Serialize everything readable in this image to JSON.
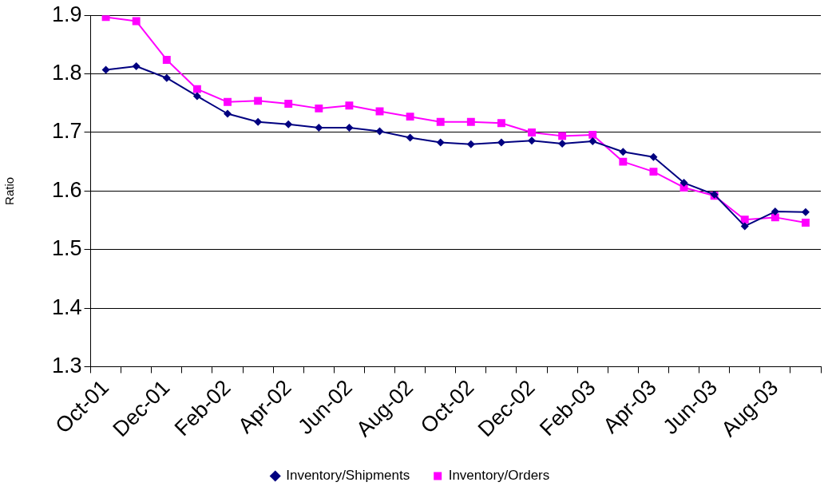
{
  "chart_data": {
    "type": "line",
    "ylabel": "Ratio",
    "categories": [
      "Oct-01",
      null,
      "Dec-01",
      null,
      "Feb-02",
      null,
      "Apr-02",
      null,
      "Jun-02",
      null,
      "Aug-02",
      null,
      "Oct-02",
      null,
      "Dec-02",
      null,
      "Feb-03",
      null,
      "Apr-03",
      null,
      "Jun-03",
      null,
      "Aug-03",
      null
    ],
    "series": [
      {
        "name": "Inventory/Shipments",
        "color": "#000080",
        "marker": "diamond",
        "values": [
          1.807,
          1.813,
          1.793,
          1.762,
          1.732,
          1.718,
          1.714,
          1.708,
          1.708,
          1.702,
          1.691,
          1.683,
          1.68,
          1.683,
          1.686,
          1.681,
          1.685,
          1.667,
          1.658,
          1.614,
          1.594,
          1.54,
          1.565,
          1.564
        ]
      },
      {
        "name": "Inventory/Orders",
        "color": "#ff00ff",
        "marker": "square",
        "values": [
          1.897,
          1.89,
          1.824,
          1.774,
          1.752,
          1.754,
          1.749,
          1.741,
          1.746,
          1.736,
          1.727,
          1.718,
          1.718,
          1.716,
          1.7,
          1.694,
          1.696,
          1.65,
          1.633,
          1.606,
          1.592,
          1.551,
          1.555,
          1.546
        ]
      }
    ],
    "ylim": [
      1.3,
      1.9
    ],
    "yticks": [
      1.3,
      1.4,
      1.5,
      1.6,
      1.7,
      1.8,
      1.9
    ],
    "grid": "y",
    "legend": "bottom",
    "line_style": "solid"
  }
}
